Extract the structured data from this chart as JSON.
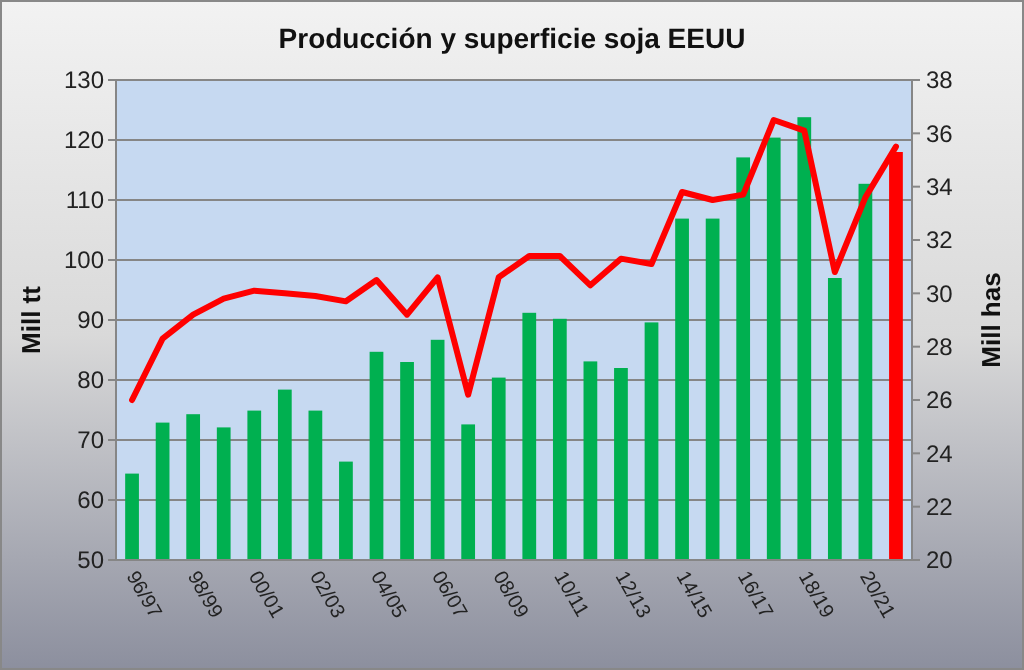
{
  "chart_data": {
    "type": "bar",
    "title": "Producción y superficie soja EEUU",
    "ylabel": "Mill tt",
    "y2label": "Mill has",
    "categories": [
      "96/97",
      null,
      "98/99",
      null,
      "00/01",
      null,
      "02/03",
      null,
      "04/05",
      null,
      "06/07",
      null,
      "08/09",
      null,
      "10/11",
      null,
      "12/13",
      null,
      "14/15",
      null,
      "16/17",
      null,
      "18/19",
      null,
      "20/21",
      null
    ],
    "series": [
      {
        "values": [
          64.4,
          72.9,
          74.3,
          72.1,
          74.9,
          78.4,
          74.9,
          66.4,
          84.7,
          83,
          86.7,
          72.6,
          80.4,
          91.2,
          90.2,
          83.1,
          82,
          89.6,
          106.9,
          106.9,
          117.1,
          120.4,
          123.8,
          97,
          112.7,
          118
        ],
        "colors": [
          "#00b050",
          "#00b050",
          "#00b050",
          "#00b050",
          "#00b050",
          "#00b050",
          "#00b050",
          "#00b050",
          "#00b050",
          "#00b050",
          "#00b050",
          "#00b050",
          "#00b050",
          "#00b050",
          "#00b050",
          "#00b050",
          "#00b050",
          "#00b050",
          "#00b050",
          "#00b050",
          "#00b050",
          "#00b050",
          "#00b050",
          "#00b050",
          "#00b050",
          "#ff0000"
        ]
      },
      {
        "type": "line",
        "axis": "y2",
        "color": "#ff0000",
        "values": [
          26.0,
          28.3,
          29.2,
          29.8,
          30.1,
          30.0,
          29.9,
          29.7,
          30.5,
          29.2,
          30.6,
          26.2,
          30.6,
          31.4,
          31.4,
          30.3,
          31.3,
          31.1,
          33.8,
          33.5,
          33.7,
          36.5,
          36.1,
          30.8,
          33.6,
          35.5
        ]
      }
    ],
    "ylim": [
      50,
      130
    ],
    "yticks": [
      50,
      60,
      70,
      80,
      90,
      100,
      110,
      120,
      130
    ],
    "y2lim": [
      20,
      38
    ],
    "y2ticks": [
      20,
      22,
      24,
      26,
      28,
      30,
      32,
      34,
      36,
      38
    ],
    "grid": "y"
  }
}
